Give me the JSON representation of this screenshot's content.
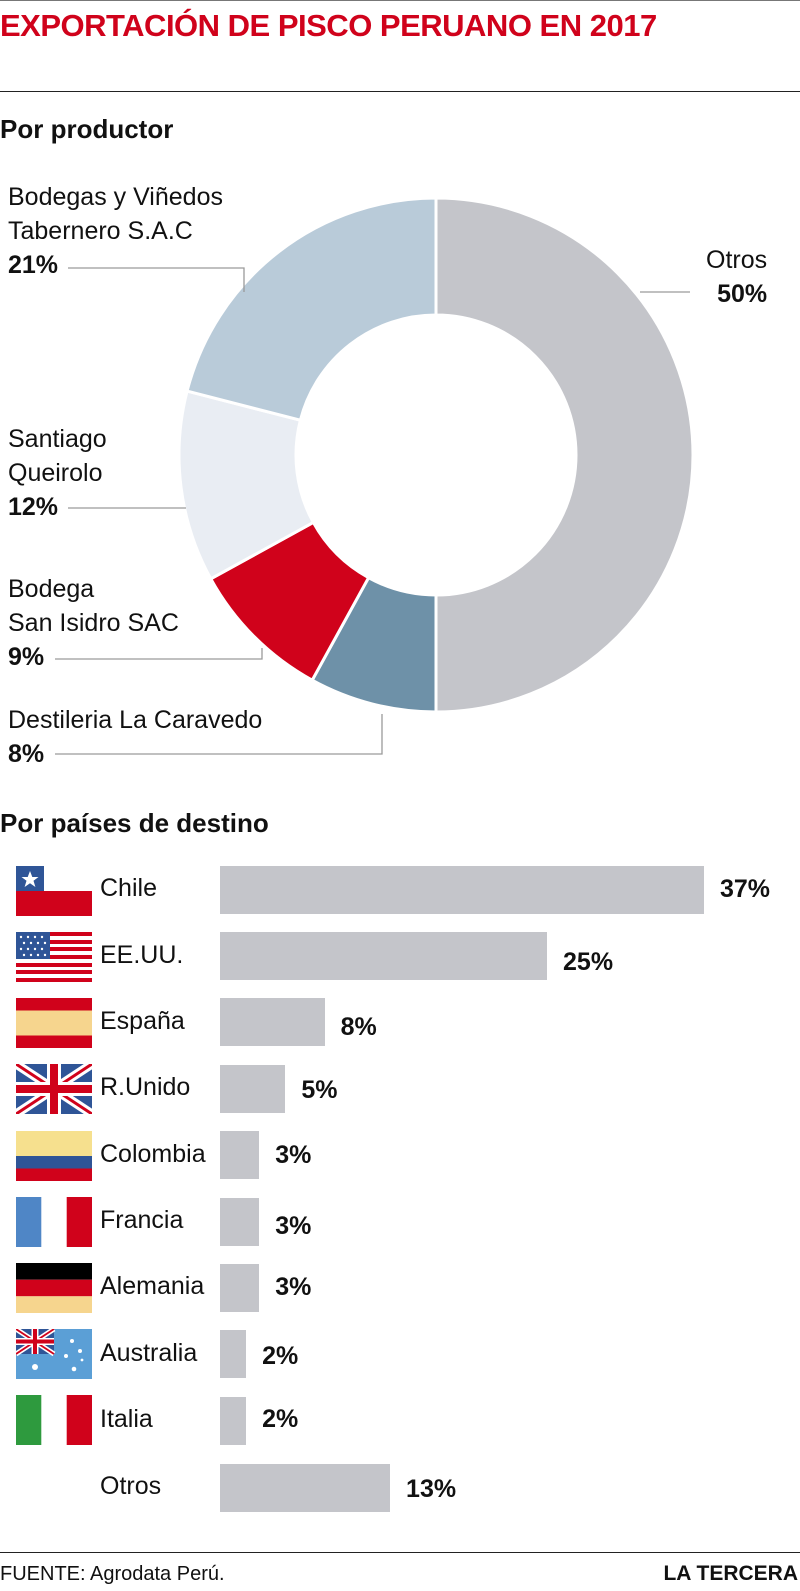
{
  "title": "EXPORTACIÓN DE PISCO PERUANO EN 2017",
  "sections": {
    "producer": "Por productor",
    "destination": "Por países de destino"
  },
  "chart_data": [
    {
      "type": "pie",
      "title": "Por productor",
      "slices": [
        {
          "name": "Otros",
          "value": 50,
          "label": "50%",
          "color": "#c4c5ca"
        },
        {
          "name": "Destileria La Caravedo",
          "value": 8,
          "label": "8%",
          "color": "#6e91a8"
        },
        {
          "name": "Bodega San Isidro SAC",
          "value": 9,
          "label": "9%",
          "color": "#d0021b"
        },
        {
          "name": "Santiago Queirolo",
          "value": 12,
          "label": "12%",
          "color": "#e9edf3"
        },
        {
          "name": "Bodegas y Viñedos Tabernero S.A.C",
          "value": 21,
          "label": "21%",
          "color": "#b9cbd9"
        }
      ],
      "legend_lines": {
        "otros": [
          "Otros"
        ],
        "tabernero": [
          "Bodegas y Viñedos",
          "Tabernero S.A.C"
        ],
        "queirolo": [
          "Santiago",
          "Queirolo"
        ],
        "sanisidro": [
          "Bodega",
          "San Isidro SAC"
        ],
        "caravedo": [
          "Destileria La Caravedo"
        ]
      }
    },
    {
      "type": "bar",
      "title": "Por países de destino",
      "categories": [
        "Chile",
        "EE.UU.",
        "España",
        "R.Unido",
        "Colombia",
        "Francia",
        "Alemania",
        "Australia",
        "Italia",
        "Otros"
      ],
      "values": [
        37,
        25,
        8,
        5,
        3,
        3,
        3,
        2,
        2,
        13
      ],
      "labels": [
        "37%",
        "25%",
        "8%",
        "5%",
        "3%",
        "3%",
        "3%",
        "2%",
        "2%",
        "13%"
      ],
      "flags": [
        "chile-flag",
        "usa-flag",
        "spain-flag",
        "uk-flag",
        "colombia-flag",
        "france-flag",
        "germany-flag",
        "australia-flag",
        "italy-flag",
        ""
      ],
      "bar_color": "#c4c5ca"
    }
  ],
  "footer": {
    "source": "FUENTE: Agrodata Perú.",
    "brand": "LA TERCERA"
  }
}
